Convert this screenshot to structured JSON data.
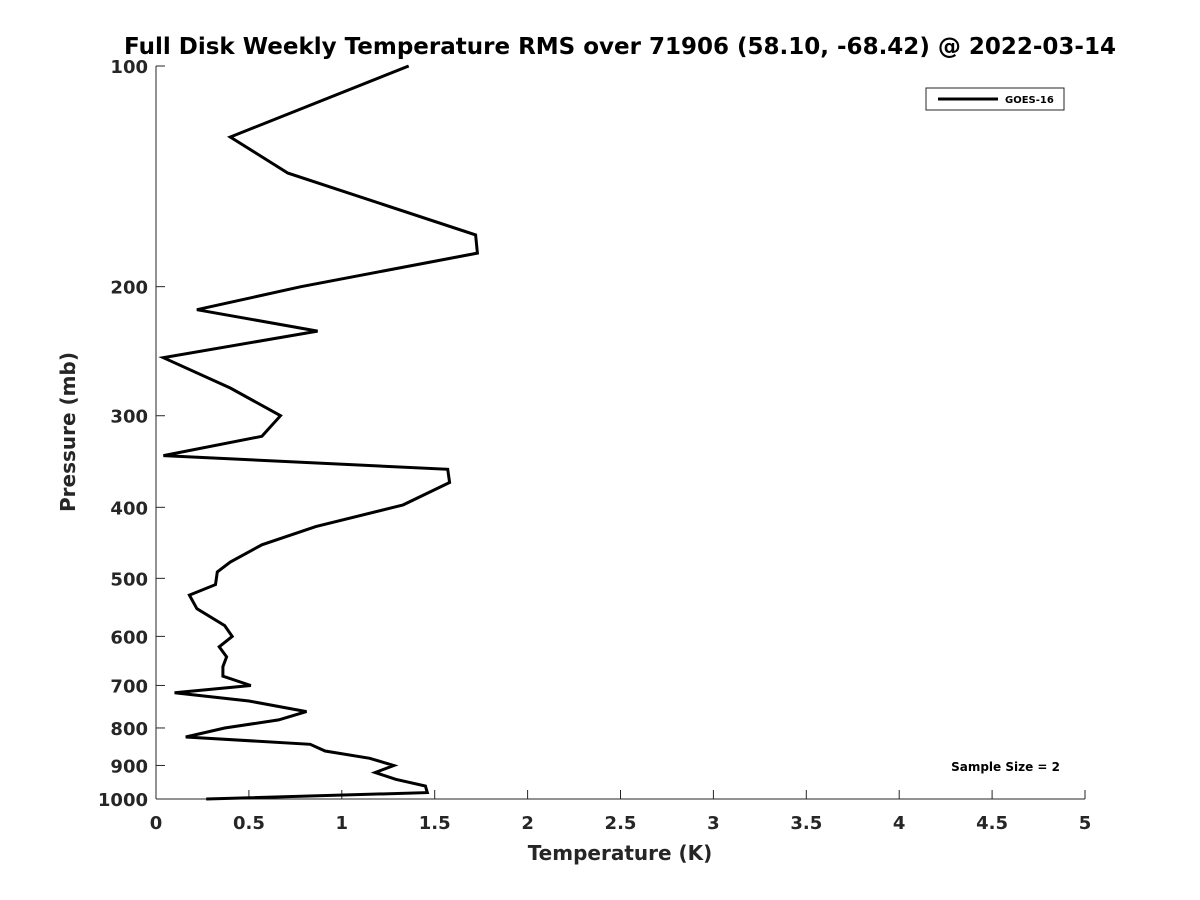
{
  "chart_data": {
    "type": "line",
    "title": "Full Disk Weekly Temperature RMS over 71906 (58.10, -68.42) @ 2022-03-14",
    "xlabel": "Temperature (K)",
    "ylabel": "Pressure (mb)",
    "xlim": [
      0,
      5
    ],
    "ylim": [
      100,
      1000
    ],
    "y_scale": "log",
    "y_direction": "reversed",
    "x_ticks": [
      "0",
      "0.5",
      "1",
      "1.5",
      "2",
      "2.5",
      "3",
      "3.5",
      "4",
      "4.5",
      "5"
    ],
    "y_ticks": [
      "100",
      "200",
      "300",
      "400",
      "500",
      "600",
      "700",
      "800",
      "900",
      "1000"
    ],
    "grid": false,
    "legend_position": "top-right",
    "annotation": "Sample Size = 2",
    "series": [
      {
        "name": "GOES-16",
        "color": "#000000",
        "points": [
          [
            1.36,
            100
          ],
          [
            0.4,
            125
          ],
          [
            0.71,
            140
          ],
          [
            1.72,
            170
          ],
          [
            1.73,
            180
          ],
          [
            0.78,
            200
          ],
          [
            0.22,
            215
          ],
          [
            0.87,
            230
          ],
          [
            0.04,
            250
          ],
          [
            0.4,
            275
          ],
          [
            0.67,
            300
          ],
          [
            0.57,
            320
          ],
          [
            0.04,
            340
          ],
          [
            1.57,
            355
          ],
          [
            1.58,
            370
          ],
          [
            1.33,
            397
          ],
          [
            0.86,
            425
          ],
          [
            0.57,
            450
          ],
          [
            0.4,
            475
          ],
          [
            0.33,
            490
          ],
          [
            0.32,
            510
          ],
          [
            0.18,
            527
          ],
          [
            0.22,
            550
          ],
          [
            0.37,
            580
          ],
          [
            0.41,
            600
          ],
          [
            0.34,
            620
          ],
          [
            0.38,
            640
          ],
          [
            0.36,
            660
          ],
          [
            0.36,
            680
          ],
          [
            0.51,
            700
          ],
          [
            0.1,
            716
          ],
          [
            0.5,
            735
          ],
          [
            0.81,
            760
          ],
          [
            0.66,
            780
          ],
          [
            0.37,
            800
          ],
          [
            0.16,
            823
          ],
          [
            0.83,
            842
          ],
          [
            0.91,
            860
          ],
          [
            1.15,
            880
          ],
          [
            1.28,
            900
          ],
          [
            1.18,
            920
          ],
          [
            1.29,
            940
          ],
          [
            1.45,
            960
          ],
          [
            1.46,
            980
          ],
          [
            0.27,
            1000
          ]
        ]
      }
    ]
  }
}
